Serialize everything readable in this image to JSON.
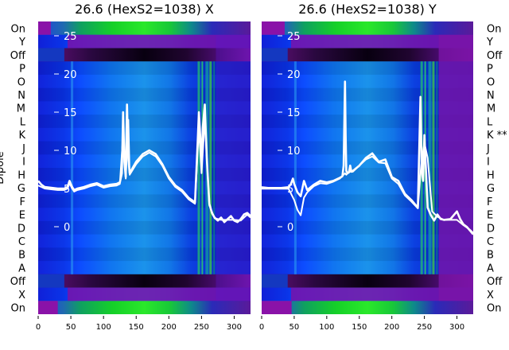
{
  "chart_data": [
    {
      "type": "heatmap",
      "title": "26.6 (HexS2=1038) X",
      "ylabel": "Dipole",
      "row_labels": [
        "On",
        "Y",
        "Off",
        "P",
        "O",
        "N",
        "M",
        "L",
        "K",
        "J",
        "I",
        "H",
        "G",
        "F",
        "E",
        "D",
        "C",
        "B",
        "A",
        "Off",
        "X",
        "On"
      ],
      "x_ticks": [
        0,
        50,
        100,
        150,
        200,
        250,
        300
      ],
      "xlim": [
        0,
        325
      ],
      "overlay_ticks": [
        0,
        5,
        10,
        15,
        20,
        25
      ],
      "overlay_ylim": [
        -3,
        28
      ],
      "overlay_traces": [
        {
          "x": [
            0,
            5,
            10,
            20,
            30,
            40,
            45,
            48,
            52,
            55,
            60,
            70,
            80,
            90,
            100,
            110,
            120,
            125,
            128,
            130,
            132,
            134,
            136,
            138,
            140,
            150,
            160,
            170,
            180,
            190,
            200,
            210,
            220,
            230,
            240,
            244,
            246,
            248,
            250,
            252,
            255,
            258,
            262,
            266,
            270,
            275,
            280,
            285,
            290,
            295,
            300,
            305,
            310,
            315,
            320,
            325
          ],
          "y": [
            6,
            5.5,
            5.2,
            5.1,
            5.0,
            5.0,
            5.2,
            6.0,
            5.2,
            4.8,
            5.0,
            5.2,
            5.5,
            5.7,
            5.3,
            5.5,
            5.6,
            5.8,
            7,
            15,
            8.5,
            6.5,
            16,
            9,
            7,
            8.5,
            9.5,
            10,
            9.5,
            8.2,
            6.5,
            5.4,
            4.8,
            3.8,
            3.2,
            11,
            15,
            12,
            8,
            13,
            16,
            9,
            3,
            1.8,
            1.2,
            0.8,
            1.2,
            0.6,
            1.0,
            1.4,
            0.8,
            0.6,
            1.0,
            1.6,
            1.8,
            1.4
          ]
        },
        {
          "x": [
            0,
            10,
            20,
            30,
            40,
            45,
            48,
            52,
            55,
            60,
            70,
            80,
            90,
            100,
            110,
            120,
            125,
            130,
            134,
            138,
            140,
            150,
            160,
            170,
            180,
            190,
            200,
            210,
            220,
            230,
            240,
            246,
            250,
            255,
            262,
            270,
            280,
            290,
            300,
            310,
            320,
            325
          ],
          "y": [
            5.4,
            5.0,
            4.9,
            4.8,
            4.8,
            5.0,
            5.7,
            5.0,
            4.6,
            4.8,
            5.0,
            5.3,
            5.5,
            5.1,
            5.3,
            5.4,
            5.6,
            12,
            6.3,
            14,
            6.8,
            8.2,
            9.2,
            9.7,
            9.2,
            8.0,
            6.3,
            5.2,
            4.6,
            3.6,
            3.0,
            13,
            7,
            14,
            2.8,
            1.1,
            0.9,
            0.9,
            0.9,
            0.8,
            1.6,
            1.2
          ]
        }
      ]
    },
    {
      "type": "heatmap",
      "title": "26.6 (HexS2=1038) Y",
      "ylabel": "",
      "row_labels": [
        "On",
        "Y",
        "Off",
        "P",
        "O",
        "N",
        "M",
        "L",
        "K **",
        "J",
        "I",
        "H",
        "G",
        "F",
        "E",
        "D",
        "C",
        "B",
        "A",
        "Off",
        "X",
        "On"
      ],
      "x_ticks": [
        0,
        50,
        100,
        150,
        200,
        250,
        300
      ],
      "xlim": [
        0,
        325
      ],
      "overlay_ticks": [
        0,
        5,
        10,
        15,
        20,
        25
      ],
      "overlay_ylim": [
        -3,
        28
      ],
      "overlay_traces": [
        {
          "x": [
            0,
            10,
            20,
            30,
            40,
            45,
            48,
            50,
            55,
            60,
            65,
            70,
            80,
            90,
            100,
            110,
            120,
            124,
            126,
            128,
            129,
            130,
            132,
            134,
            136,
            138,
            140,
            150,
            160,
            170,
            180,
            190,
            200,
            210,
            220,
            230,
            235,
            240,
            242,
            244,
            246,
            248,
            250,
            255,
            260,
            265,
            270,
            275,
            280,
            290,
            300,
            305,
            310,
            315,
            320,
            325
          ],
          "y": [
            5,
            5,
            5,
            5,
            5,
            5.6,
            6.3,
            5.6,
            4.5,
            4,
            6,
            4.8,
            5.5,
            6,
            5.8,
            6,
            6.4,
            6.6,
            8,
            19,
            12,
            7.3,
            7.0,
            7.1,
            8,
            7.2,
            7.3,
            8,
            9,
            9.6,
            8.5,
            8.8,
            6.5,
            6,
            4.3,
            3.5,
            3.0,
            2.5,
            10,
            17,
            7.5,
            6,
            12,
            2.5,
            1.5,
            0.8,
            1.6,
            1.0,
            0.9,
            1.0,
            2.0,
            1.0,
            0.3,
            0.0,
            -0.5,
            -1.0
          ]
        },
        {
          "x": [
            0,
            10,
            20,
            30,
            40,
            50,
            55,
            60,
            65,
            70,
            80,
            90,
            100,
            110,
            120,
            128,
            130,
            134,
            140,
            150,
            160,
            170,
            180,
            190,
            200,
            210,
            220,
            230,
            240,
            245,
            250,
            255,
            262,
            270,
            280,
            290,
            300,
            310,
            320,
            325
          ],
          "y": [
            5.2,
            5.1,
            5.1,
            5.1,
            5.2,
            3.5,
            2.2,
            1.5,
            3.8,
            4.5,
            5.3,
            5.7,
            5.6,
            5.9,
            6.3,
            7.0,
            6.8,
            7.2,
            7.2,
            8.0,
            8.8,
            9.2,
            8.4,
            8.3,
            6.3,
            5.6,
            4.1,
            3.3,
            2.4,
            8,
            11,
            9,
            2.0,
            1.3,
            0.9,
            0.9,
            0.9,
            0.2,
            -0.4,
            -0.8
          ]
        }
      ]
    }
  ]
}
